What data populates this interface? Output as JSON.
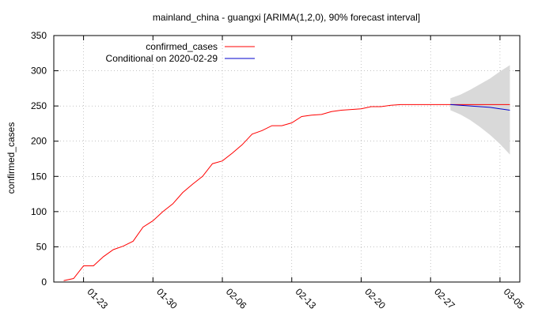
{
  "chart_data": {
    "type": "line",
    "title": "mainland_china - guangxi [ARIMA(1,2,0), 90% forecast interval]",
    "xlabel": "",
    "ylabel": "confirmed_cases",
    "x_ticks": [
      "01-23",
      "01-30",
      "02-06",
      "02-13",
      "02-20",
      "02-27",
      "03-05"
    ],
    "x_tick_dates": [
      "2020-01-23",
      "2020-01-30",
      "2020-02-06",
      "2020-02-13",
      "2020-02-20",
      "2020-02-27",
      "2020-03-05"
    ],
    "xlim": [
      "2020-01-20",
      "2020-03-07"
    ],
    "ylim": [
      0,
      350
    ],
    "y_ticks": [
      0,
      50,
      100,
      150,
      200,
      250,
      300,
      350
    ],
    "grid": true,
    "legend_position": "top-left",
    "colors": {
      "confirmed": "#ff0000",
      "forecast": "#0000cc",
      "interval": "#d9d9d9"
    },
    "series": [
      {
        "name": "confirmed_cases",
        "points": [
          [
            "2020-01-21",
            2
          ],
          [
            "2020-01-22",
            5
          ],
          [
            "2020-01-23",
            23
          ],
          [
            "2020-01-24",
            23
          ],
          [
            "2020-01-25",
            36
          ],
          [
            "2020-01-26",
            46
          ],
          [
            "2020-01-27",
            51
          ],
          [
            "2020-01-28",
            58
          ],
          [
            "2020-01-29",
            78
          ],
          [
            "2020-01-30",
            87
          ],
          [
            "2020-01-31",
            100
          ],
          [
            "2020-02-01",
            111
          ],
          [
            "2020-02-02",
            127
          ],
          [
            "2020-02-03",
            139
          ],
          [
            "2020-02-04",
            150
          ],
          [
            "2020-02-05",
            168
          ],
          [
            "2020-02-06",
            172
          ],
          [
            "2020-02-07",
            183
          ],
          [
            "2020-02-08",
            195
          ],
          [
            "2020-02-09",
            210
          ],
          [
            "2020-02-10",
            215
          ],
          [
            "2020-02-11",
            222
          ],
          [
            "2020-02-12",
            222
          ],
          [
            "2020-02-13",
            226
          ],
          [
            "2020-02-14",
            235
          ],
          [
            "2020-02-15",
            237
          ],
          [
            "2020-02-16",
            238
          ],
          [
            "2020-02-17",
            242
          ],
          [
            "2020-02-18",
            244
          ],
          [
            "2020-02-19",
            245
          ],
          [
            "2020-02-20",
            246
          ],
          [
            "2020-02-21",
            249
          ],
          [
            "2020-02-22",
            249
          ],
          [
            "2020-02-23",
            251
          ],
          [
            "2020-02-24",
            252
          ],
          [
            "2020-02-25",
            252
          ],
          [
            "2020-02-26",
            252
          ],
          [
            "2020-02-27",
            252
          ],
          [
            "2020-02-28",
            252
          ],
          [
            "2020-02-29",
            252
          ],
          [
            "2020-03-01",
            252
          ],
          [
            "2020-03-02",
            252
          ],
          [
            "2020-03-03",
            252
          ],
          [
            "2020-03-04",
            252
          ],
          [
            "2020-03-05",
            252
          ],
          [
            "2020-03-06",
            252
          ]
        ]
      },
      {
        "name": "Conditional on 2020-02-29",
        "points": [
          [
            "2020-02-29",
            252
          ],
          [
            "2020-03-01",
            251
          ],
          [
            "2020-03-02",
            250
          ],
          [
            "2020-03-03",
            249
          ],
          [
            "2020-03-04",
            248
          ],
          [
            "2020-03-05",
            246
          ],
          [
            "2020-03-06",
            244
          ]
        ]
      }
    ],
    "interval": {
      "points": [
        [
          "2020-02-29",
          244,
          261
        ],
        [
          "2020-03-01",
          238,
          266
        ],
        [
          "2020-03-02",
          230,
          273
        ],
        [
          "2020-03-03",
          220,
          281
        ],
        [
          "2020-03-04",
          209,
          289
        ],
        [
          "2020-03-05",
          196,
          299
        ],
        [
          "2020-03-06",
          181,
          308
        ]
      ]
    }
  }
}
